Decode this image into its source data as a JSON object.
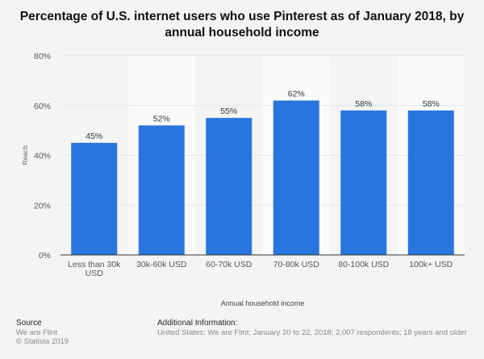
{
  "title": "Percentage of U.S. internet users who use Pinterest as of January 2018, by annual household income",
  "chart_data": {
    "type": "bar",
    "categories": [
      "Less than 30k USD",
      "30k-60k USD",
      "60-70k USD",
      "70-80k USD",
      "80-100k USD",
      "100k+ USD"
    ],
    "values": [
      45,
      52,
      55,
      62,
      58,
      58
    ],
    "value_labels": [
      "45%",
      "52%",
      "55%",
      "62%",
      "58%",
      "58%"
    ],
    "xlabel": "Annual household income",
    "ylabel": "Reach",
    "ylim": [
      0,
      80
    ],
    "yticks": [
      "0%",
      "20%",
      "40%",
      "60%",
      "80%"
    ],
    "grid": true,
    "bar_color": "#2876dd"
  },
  "footer": {
    "source_heading": "Source",
    "source_lines": [
      "We are Flint",
      "© Statista 2019"
    ],
    "info_heading": "Additional Information:",
    "info_text": "United States; We are Flint; January 20 to 22, 2018; 2,007 respondents; 18 years and older"
  }
}
